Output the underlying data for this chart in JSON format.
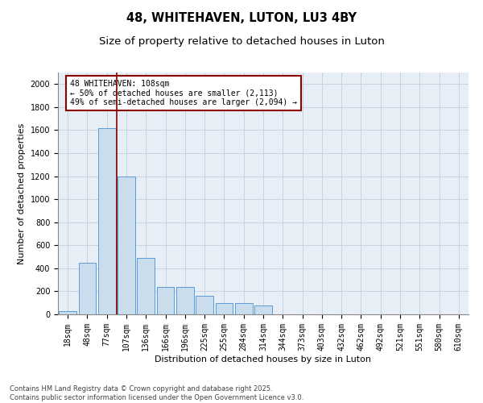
{
  "title1": "48, WHITEHAVEN, LUTON, LU3 4BY",
  "title2": "Size of property relative to detached houses in Luton",
  "xlabel": "Distribution of detached houses by size in Luton",
  "ylabel": "Number of detached properties",
  "categories": [
    "18sqm",
    "48sqm",
    "77sqm",
    "107sqm",
    "136sqm",
    "166sqm",
    "196sqm",
    "225sqm",
    "255sqm",
    "284sqm",
    "314sqm",
    "344sqm",
    "373sqm",
    "403sqm",
    "432sqm",
    "462sqm",
    "492sqm",
    "521sqm",
    "551sqm",
    "580sqm",
    "610sqm"
  ],
  "values": [
    30,
    450,
    1620,
    1200,
    490,
    240,
    240,
    160,
    100,
    100,
    80,
    0,
    0,
    0,
    0,
    0,
    0,
    0,
    0,
    0,
    0
  ],
  "bar_color": "#c9dded",
  "bar_edge_color": "#5b9bd5",
  "vline_x_idx": 2.5,
  "vline_color": "#8b0000",
  "annotation_line1": "48 WHITEHAVEN: 108sqm",
  "annotation_line2": "← 50% of detached houses are smaller (2,113)",
  "annotation_line3": "49% of semi-detached houses are larger (2,094) →",
  "annotation_box_color": "#8b0000",
  "ylim": [
    0,
    2100
  ],
  "yticks": [
    0,
    200,
    400,
    600,
    800,
    1000,
    1200,
    1400,
    1600,
    1800,
    2000
  ],
  "grid_color": "#c8d4e4",
  "bg_color": "#e8eef6",
  "footer1": "Contains HM Land Registry data © Crown copyright and database right 2025.",
  "footer2": "Contains public sector information licensed under the Open Government Licence v3.0.",
  "title_fontsize": 10.5,
  "subtitle_fontsize": 9.5,
  "axis_label_fontsize": 8,
  "tick_fontsize": 7,
  "annotation_fontsize": 7,
  "footer_fontsize": 6
}
